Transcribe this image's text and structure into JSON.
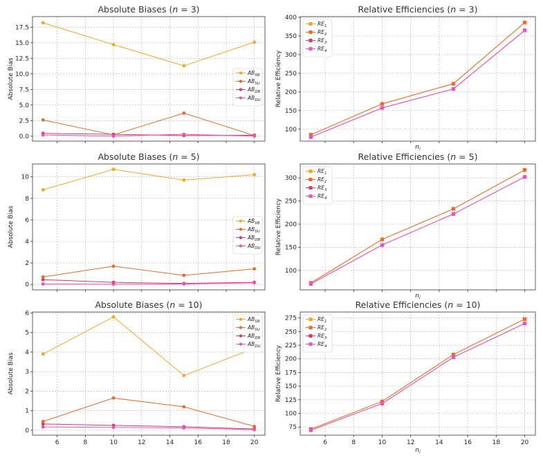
{
  "chart_data": [
    {
      "type": "line",
      "title": "Absolute Biases (n = 3)",
      "xlabel": "",
      "ylabel": "Absolute Bias",
      "x": [
        5,
        10,
        15,
        20
      ],
      "xlim": [
        4.25,
        20.75
      ],
      "ylim": [
        -0.8,
        19.2
      ],
      "yticks": [
        0.0,
        2.5,
        5.0,
        7.5,
        10.0,
        12.5,
        15.0,
        17.5
      ],
      "ytick_labels": [
        "0.0",
        "2.5",
        "5.0",
        "7.5",
        "10.0",
        "12.5",
        "15.0",
        "17.5"
      ],
      "xticks": [
        6,
        8,
        10,
        12,
        14,
        16,
        18,
        20
      ],
      "xtick_labels": [],
      "marker": "circle",
      "legend": "center-right",
      "series": [
        {
          "name": "AB_SB",
          "label": "AB",
          "sub": "SB",
          "color": "#F5A623",
          "values": [
            18.2,
            14.7,
            11.3,
            15.1
          ]
        },
        {
          "name": "AB_SU",
          "label": "AB",
          "sub": "SU",
          "color": "#EC6A2A",
          "values": [
            2.6,
            0.2,
            3.7,
            0.1
          ]
        },
        {
          "name": "AB_DB",
          "label": "AB",
          "sub": "DB",
          "color": "#DE3963",
          "values": [
            0.45,
            0.3,
            0.1,
            0.15
          ]
        },
        {
          "name": "AB_DU",
          "label": "AB",
          "sub": "DU",
          "color": "#E955C0",
          "values": [
            0.2,
            0.0,
            0.3,
            0.0
          ]
        }
      ]
    },
    {
      "type": "line",
      "title": "Relative Efficiencies (n = 3)",
      "xlabel": "n_i",
      "ylabel": "Relative Efficiency",
      "x": [
        5,
        10,
        15,
        20
      ],
      "xlim": [
        4.25,
        20.75
      ],
      "ylim": [
        68,
        402
      ],
      "yticks": [
        100,
        150,
        200,
        250,
        300,
        350,
        400
      ],
      "ytick_labels": [
        "100",
        "150",
        "200",
        "250",
        "300",
        "350",
        "400"
      ],
      "xticks": [
        6,
        8,
        10,
        12,
        14,
        16,
        18,
        20
      ],
      "xtick_labels": [],
      "marker": "square",
      "legend": "top-left",
      "series": [
        {
          "name": "RE_1",
          "label": "RE",
          "sub": "1",
          "color": "#F5A623",
          "values": [
            85,
            168,
            222,
            386
          ]
        },
        {
          "name": "RE_2",
          "label": "RE",
          "sub": "2",
          "color": "#EC6A2A",
          "values": [
            85,
            168,
            222,
            386
          ]
        },
        {
          "name": "RE_3",
          "label": "RE",
          "sub": "3",
          "color": "#DE3963",
          "values": [
            79,
            157,
            208,
            365
          ]
        },
        {
          "name": "RE_4",
          "label": "RE",
          "sub": "4",
          "color": "#E955C0",
          "values": [
            79,
            157,
            208,
            365
          ]
        }
      ]
    },
    {
      "type": "line",
      "title": "Absolute Biases (n = 5)",
      "xlabel": "",
      "ylabel": "Absolute Bias",
      "x": [
        5,
        10,
        15,
        20
      ],
      "xlim": [
        4.25,
        20.75
      ],
      "ylim": [
        -0.5,
        11.2
      ],
      "yticks": [
        0,
        2,
        4,
        6,
        8,
        10
      ],
      "ytick_labels": [
        "0",
        "2",
        "4",
        "6",
        "8",
        "10"
      ],
      "xticks": [
        6,
        8,
        10,
        12,
        14,
        16,
        18,
        20
      ],
      "xtick_labels": [],
      "marker": "circle",
      "legend": "center-right",
      "series": [
        {
          "name": "AB_SB",
          "label": "AB",
          "sub": "SB",
          "color": "#F5A623",
          "values": [
            8.8,
            10.7,
            9.7,
            10.2
          ]
        },
        {
          "name": "AB_SU",
          "label": "AB",
          "sub": "SU",
          "color": "#EC6A2A",
          "values": [
            0.7,
            1.7,
            0.85,
            1.45
          ]
        },
        {
          "name": "AB_DB",
          "label": "AB",
          "sub": "DB",
          "color": "#DE3963",
          "values": [
            0.45,
            0.2,
            0.1,
            0.2
          ]
        },
        {
          "name": "AB_DU",
          "label": "AB",
          "sub": "DU",
          "color": "#E955C0",
          "values": [
            0.05,
            0.03,
            0.05,
            0.15
          ]
        }
      ]
    },
    {
      "type": "line",
      "title": "Relative Efficiencies (n = 5)",
      "xlabel": "n_i",
      "ylabel": "Relative Efficiency",
      "x": [
        5,
        10,
        15,
        20
      ],
      "xlim": [
        4.25,
        20.75
      ],
      "ylim": [
        58,
        330
      ],
      "yticks": [
        100,
        150,
        200,
        250,
        300
      ],
      "ytick_labels": [
        "100",
        "150",
        "200",
        "250",
        "300"
      ],
      "xticks": [
        6,
        8,
        10,
        12,
        14,
        16,
        18,
        20
      ],
      "xtick_labels": [],
      "marker": "square",
      "legend": "top-left",
      "series": [
        {
          "name": "RE_1",
          "label": "RE",
          "sub": "1",
          "color": "#F5A623",
          "values": [
            73,
            167,
            233,
            317
          ]
        },
        {
          "name": "RE_2",
          "label": "RE",
          "sub": "2",
          "color": "#EC6A2A",
          "values": [
            73,
            167,
            233,
            317
          ]
        },
        {
          "name": "RE_3",
          "label": "RE",
          "sub": "3",
          "color": "#DE3963",
          "values": [
            71,
            155,
            222,
            302
          ]
        },
        {
          "name": "RE_4",
          "label": "RE",
          "sub": "4",
          "color": "#E955C0",
          "values": [
            71,
            155,
            222,
            302
          ]
        }
      ]
    },
    {
      "type": "line",
      "title": "Absolute Biases (n = 10)",
      "xlabel": "",
      "ylabel": "Absolute Bias",
      "x": [
        5,
        10,
        15,
        20
      ],
      "xlim": [
        4.25,
        20.75
      ],
      "ylim": [
        -0.25,
        6.05
      ],
      "yticks": [
        0,
        1,
        2,
        3,
        4,
        5,
        6
      ],
      "ytick_labels": [
        "0",
        "1",
        "2",
        "3",
        "4",
        "5",
        "6"
      ],
      "xticks": [
        6,
        8,
        10,
        12,
        14,
        16,
        18,
        20
      ],
      "xtick_labels": [
        "6",
        "8",
        "10",
        "12",
        "14",
        "16",
        "18",
        "20"
      ],
      "marker": "circle",
      "legend": "top-right",
      "series": [
        {
          "name": "AB_SB",
          "label": "AB",
          "sub": "SB",
          "color": "#F5A623",
          "values": [
            3.9,
            5.8,
            2.8,
            4.2
          ]
        },
        {
          "name": "AB_SU",
          "label": "AB",
          "sub": "SU",
          "color": "#EC6A2A",
          "values": [
            0.45,
            1.65,
            1.2,
            0.2
          ]
        },
        {
          "name": "AB_DB",
          "label": "AB",
          "sub": "DB",
          "color": "#DE3963",
          "values": [
            0.32,
            0.25,
            0.18,
            0.07
          ]
        },
        {
          "name": "AB_DU",
          "label": "AB",
          "sub": "DU",
          "color": "#E955C0",
          "values": [
            0.17,
            0.15,
            0.12,
            0.03
          ]
        }
      ]
    },
    {
      "type": "line",
      "title": "Relative Efficiencies (n = 10)",
      "xlabel": "n_i",
      "ylabel": "Relative Efficiency",
      "x": [
        5,
        10,
        15,
        20
      ],
      "xlim": [
        4.25,
        20.75
      ],
      "ylim": [
        60,
        286
      ],
      "yticks": [
        75,
        100,
        125,
        150,
        175,
        200,
        225,
        250,
        275
      ],
      "ytick_labels": [
        "75",
        "100",
        "125",
        "150",
        "175",
        "200",
        "225",
        "250",
        "275"
      ],
      "xticks": [
        6,
        8,
        10,
        12,
        14,
        16,
        18,
        20
      ],
      "xtick_labels": [
        "6",
        "8",
        "10",
        "12",
        "14",
        "16",
        "18",
        "20"
      ],
      "marker": "square",
      "legend": "top-left",
      "series": [
        {
          "name": "RE_1",
          "label": "RE",
          "sub": "1",
          "color": "#F5A623",
          "values": [
            71,
            122,
            208,
            273
          ]
        },
        {
          "name": "RE_2",
          "label": "RE",
          "sub": "2",
          "color": "#EC6A2A",
          "values": [
            71,
            122,
            208,
            273
          ]
        },
        {
          "name": "RE_3",
          "label": "RE",
          "sub": "3",
          "color": "#DE3963",
          "values": [
            69,
            118,
            203,
            265
          ]
        },
        {
          "name": "RE_4",
          "label": "RE",
          "sub": "4",
          "color": "#E955C0",
          "values": [
            69,
            118,
            203,
            265
          ]
        }
      ]
    }
  ]
}
